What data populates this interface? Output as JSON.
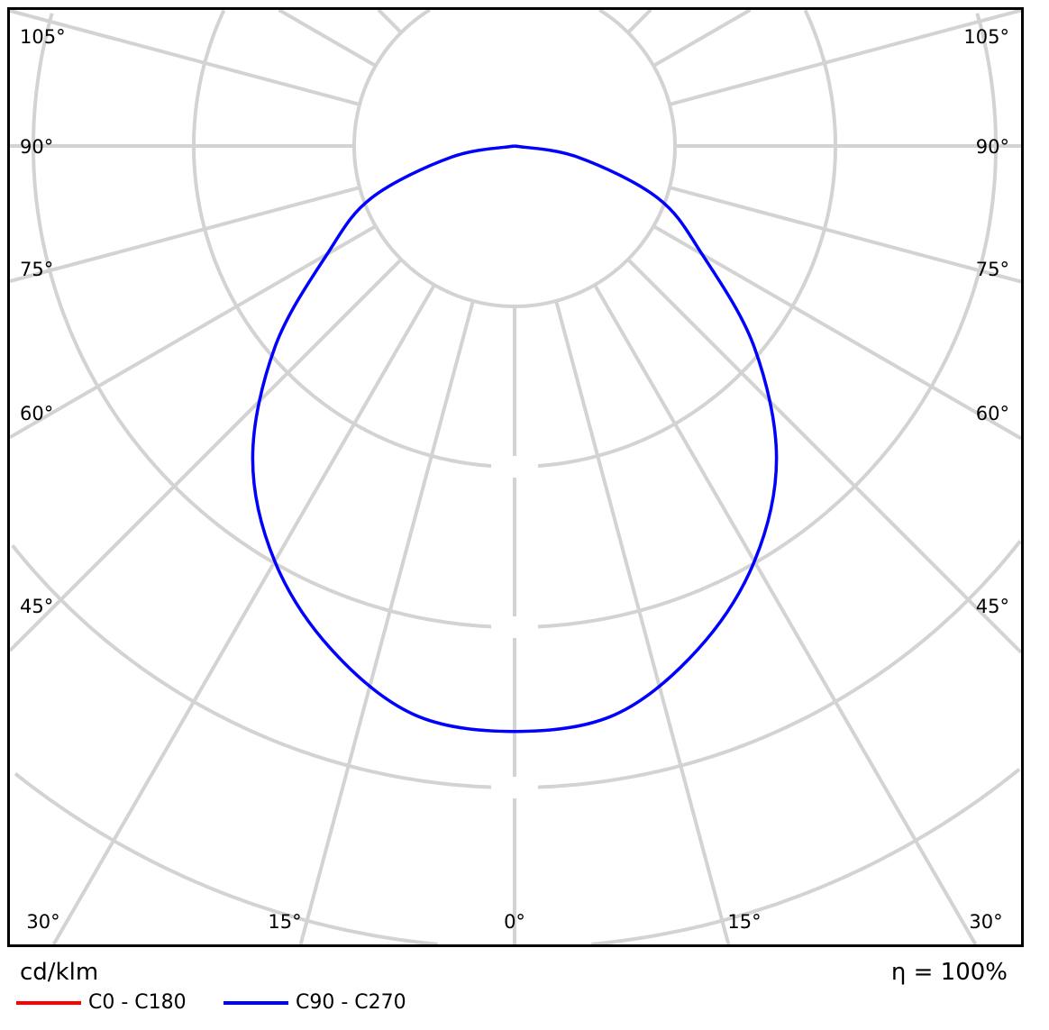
{
  "chart_data": {
    "type": "polar-line",
    "unit_label": "cd/klm",
    "efficiency_label": "η = 100%",
    "angle_labels": {
      "left": [
        "105°",
        "90°",
        "75°",
        "60°",
        "45°"
      ],
      "right": [
        "105°",
        "90°",
        "75°",
        "60°",
        "45°"
      ],
      "bottom": [
        "30°",
        "15°",
        "0°",
        "15°",
        "30°"
      ]
    },
    "angle_grid_step_deg": 15,
    "grid": true,
    "legend_placement": "bottom-left",
    "angles_deg": [
      0,
      10,
      20,
      30,
      40,
      50,
      60,
      70,
      80,
      90
    ],
    "series": [
      {
        "name": "C0 - C180",
        "color": "#ff0000",
        "values": [
          3.65,
          3.6,
          3.34,
          2.99,
          2.54,
          1.95,
          1.35,
          0.95,
          0.4,
          0
        ]
      },
      {
        "name": "C90 - C270",
        "color": "#0000ff",
        "values": [
          3.65,
          3.6,
          3.34,
          2.99,
          2.54,
          1.95,
          1.35,
          0.95,
          0.4,
          0
        ]
      }
    ]
  }
}
